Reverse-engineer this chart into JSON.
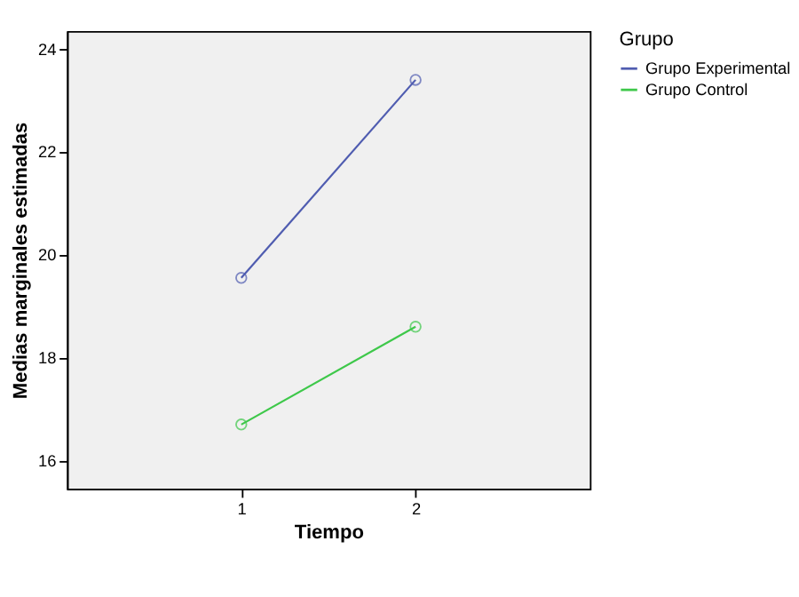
{
  "chart_data": {
    "type": "line",
    "xlabel": "Tiempo",
    "ylabel": "Medias marginales estimadas",
    "legend_title": "Grupo",
    "x": [
      1,
      2
    ],
    "series": [
      {
        "name": "Grupo Experimental",
        "color": "#4f5cb0",
        "values": [
          19.55,
          23.4
        ]
      },
      {
        "name": "Grupo Control",
        "color": "#3ec84a",
        "values": [
          16.7,
          18.6
        ]
      }
    ],
    "xlim": [
      0,
      3
    ],
    "xticks": [
      1,
      2
    ],
    "ylim": [
      15.45,
      24.35
    ],
    "yticks": [
      16,
      18,
      20,
      22,
      24
    ],
    "grid": false,
    "legend": "top right",
    "marker": "circle",
    "line_style": "solid"
  }
}
